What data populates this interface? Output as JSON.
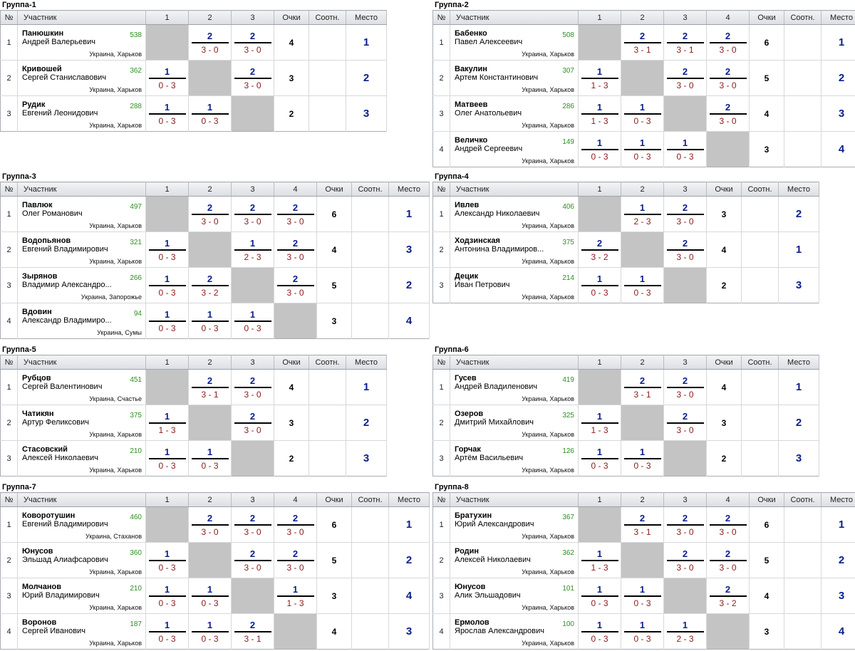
{
  "headers": {
    "num": "№",
    "participant": "Участник",
    "points": "Очки",
    "ratio": "Соотн.",
    "place": "Место"
  },
  "groups": [
    {
      "title": "Группа-1",
      "rows": [
        {
          "num": "1",
          "surname": "Панюшкин",
          "name": "Андрей Валерьевич",
          "rating": "538",
          "city": "Украина, Харьков",
          "scores": [
            null,
            [
              "2",
              "3 - 0"
            ],
            [
              "2",
              "3 - 0"
            ]
          ],
          "points": "4",
          "ratio": "",
          "place": "1"
        },
        {
          "num": "2",
          "surname": "Кривошей",
          "name": "Сергей Станиславович",
          "rating": "362",
          "city": "Украина, Харьков",
          "scores": [
            [
              "1",
              "0 - 3"
            ],
            null,
            [
              "2",
              "3 - 0"
            ]
          ],
          "points": "3",
          "ratio": "",
          "place": "2"
        },
        {
          "num": "3",
          "surname": "Рудик",
          "name": "Евгений Леонидович",
          "rating": "288",
          "city": "Украина, Харьков",
          "scores": [
            [
              "1",
              "0 - 3"
            ],
            [
              "1",
              "0 - 3"
            ],
            null
          ],
          "points": "2",
          "ratio": "",
          "place": "3"
        }
      ]
    },
    {
      "title": "Группа-2",
      "rows": [
        {
          "num": "1",
          "surname": "Бабенко",
          "name": "Павел Алексеевич",
          "rating": "508",
          "city": "Украина, Харьков",
          "scores": [
            null,
            [
              "2",
              "3 - 1"
            ],
            [
              "2",
              "3 - 1"
            ],
            [
              "2",
              "3 - 0"
            ]
          ],
          "points": "6",
          "ratio": "",
          "place": "1"
        },
        {
          "num": "2",
          "surname": "Вакулин",
          "name": "Артем Константинович",
          "rating": "307",
          "city": "Украина, Харьков",
          "scores": [
            [
              "1",
              "1 - 3"
            ],
            null,
            [
              "2",
              "3 - 0"
            ],
            [
              "2",
              "3 - 0"
            ]
          ],
          "points": "5",
          "ratio": "",
          "place": "2"
        },
        {
          "num": "3",
          "surname": "Матвеев",
          "name": "Олег Анатольевич",
          "rating": "286",
          "city": "Украина, Харьков",
          "scores": [
            [
              "1",
              "1 - 3"
            ],
            [
              "1",
              "0 - 3"
            ],
            null,
            [
              "2",
              "3 - 0"
            ]
          ],
          "points": "4",
          "ratio": "",
          "place": "3"
        },
        {
          "num": "4",
          "surname": "Величко",
          "name": "Андрей Сергеевич",
          "rating": "149",
          "city": "Украина, Харьков",
          "scores": [
            [
              "1",
              "0 - 3"
            ],
            [
              "1",
              "0 - 3"
            ],
            [
              "1",
              "0 - 3"
            ],
            null
          ],
          "points": "3",
          "ratio": "",
          "place": "4"
        }
      ]
    },
    {
      "title": "Группа-3",
      "rows": [
        {
          "num": "1",
          "surname": "Павлюк",
          "name": "Олег Романович",
          "rating": "497",
          "city": "Украина, Харьков",
          "scores": [
            null,
            [
              "2",
              "3 - 0"
            ],
            [
              "2",
              "3 - 0"
            ],
            [
              "2",
              "3 - 0"
            ]
          ],
          "points": "6",
          "ratio": "",
          "place": "1"
        },
        {
          "num": "2",
          "surname": "Водопьянов",
          "name": "Евгений Владимирович",
          "rating": "321",
          "city": "Украина, Харьков",
          "scores": [
            [
              "1",
              "0 - 3"
            ],
            null,
            [
              "1",
              "2 - 3"
            ],
            [
              "2",
              "3 - 0"
            ]
          ],
          "points": "4",
          "ratio": "",
          "place": "3"
        },
        {
          "num": "3",
          "surname": "Зырянов",
          "name": "Владимир Александро...",
          "rating": "266",
          "city": "Украина, Запорожье",
          "scores": [
            [
              "1",
              "0 - 3"
            ],
            [
              "2",
              "3 - 2"
            ],
            null,
            [
              "2",
              "3 - 0"
            ]
          ],
          "points": "5",
          "ratio": "",
          "place": "2"
        },
        {
          "num": "4",
          "surname": "Вдовин",
          "name": "Александр Владимиро...",
          "rating": "94",
          "city": "Украина, Сумы",
          "scores": [
            [
              "1",
              "0 - 3"
            ],
            [
              "1",
              "0 - 3"
            ],
            [
              "1",
              "0 - 3"
            ],
            null
          ],
          "points": "3",
          "ratio": "",
          "place": "4"
        }
      ]
    },
    {
      "title": "Группа-4",
      "rows": [
        {
          "num": "1",
          "surname": "Ивлев",
          "name": "Александр Николаевич",
          "rating": "406",
          "city": "Украина, Харьков",
          "scores": [
            null,
            [
              "1",
              "2 - 3"
            ],
            [
              "2",
              "3 - 0"
            ]
          ],
          "points": "3",
          "ratio": "",
          "place": "2"
        },
        {
          "num": "2",
          "surname": "Ходзинская",
          "name": "Антонина Владимиров...",
          "rating": "375",
          "city": "Украина, Харьков",
          "scores": [
            [
              "2",
              "3 - 2"
            ],
            null,
            [
              "2",
              "3 - 0"
            ]
          ],
          "points": "4",
          "ratio": "",
          "place": "1"
        },
        {
          "num": "3",
          "surname": "Децик",
          "name": "Иван Петрович",
          "rating": "214",
          "city": "Украина, Харьков",
          "scores": [
            [
              "1",
              "0 - 3"
            ],
            [
              "1",
              "0 - 3"
            ],
            null
          ],
          "points": "2",
          "ratio": "",
          "place": "3"
        }
      ]
    },
    {
      "title": "Группа-5",
      "rows": [
        {
          "num": "1",
          "surname": "Рубцов",
          "name": "Сергей Валентинович",
          "rating": "451",
          "city": "Украина, Счастье",
          "scores": [
            null,
            [
              "2",
              "3 - 1"
            ],
            [
              "2",
              "3 - 0"
            ]
          ],
          "points": "4",
          "ratio": "",
          "place": "1"
        },
        {
          "num": "2",
          "surname": "Чатикян",
          "name": "Артур Феликсович",
          "rating": "375",
          "city": "Украина, Харьков",
          "scores": [
            [
              "1",
              "1 - 3"
            ],
            null,
            [
              "2",
              "3 - 0"
            ]
          ],
          "points": "3",
          "ratio": "",
          "place": "2"
        },
        {
          "num": "3",
          "surname": "Стасовский",
          "name": "Алексей Николаевич",
          "rating": "210",
          "city": "Украина, Харьков",
          "scores": [
            [
              "1",
              "0 - 3"
            ],
            [
              "1",
              "0 - 3"
            ],
            null
          ],
          "points": "2",
          "ratio": "",
          "place": "3"
        }
      ]
    },
    {
      "title": "Группа-6",
      "rows": [
        {
          "num": "1",
          "surname": "Гусев",
          "name": "Андрей Владиленович",
          "rating": "419",
          "city": "Украина, Харьков",
          "scores": [
            null,
            [
              "2",
              "3 - 1"
            ],
            [
              "2",
              "3 - 0"
            ]
          ],
          "points": "4",
          "ratio": "",
          "place": "1"
        },
        {
          "num": "2",
          "surname": "Озеров",
          "name": "Дмитрий Михайлович",
          "rating": "325",
          "city": "Украина, Харьков",
          "scores": [
            [
              "1",
              "1 - 3"
            ],
            null,
            [
              "2",
              "3 - 0"
            ]
          ],
          "points": "3",
          "ratio": "",
          "place": "2"
        },
        {
          "num": "3",
          "surname": "Горчак",
          "name": "Артём Васильевич",
          "rating": "126",
          "city": "Украина, Харьков",
          "scores": [
            [
              "1",
              "0 - 3"
            ],
            [
              "1",
              "0 - 3"
            ],
            null
          ],
          "points": "2",
          "ratio": "",
          "place": "3"
        }
      ]
    },
    {
      "title": "Группа-7",
      "rows": [
        {
          "num": "1",
          "surname": "Коворотушин",
          "name": "Евгений Владимирович",
          "rating": "460",
          "city": "Украина, Стаханов",
          "scores": [
            null,
            [
              "2",
              "3 - 0"
            ],
            [
              "2",
              "3 - 0"
            ],
            [
              "2",
              "3 - 0"
            ]
          ],
          "points": "6",
          "ratio": "",
          "place": "1"
        },
        {
          "num": "2",
          "surname": "Юнусов",
          "name": "Эльшад Алиафсарович",
          "rating": "360",
          "city": "Украина, Харьков",
          "scores": [
            [
              "1",
              "0 - 3"
            ],
            null,
            [
              "2",
              "3 - 0"
            ],
            [
              "2",
              "3 - 0"
            ]
          ],
          "points": "5",
          "ratio": "",
          "place": "2"
        },
        {
          "num": "3",
          "surname": "Молчанов",
          "name": "Юрий Владимирович",
          "rating": "210",
          "city": "Украина, Харьков",
          "scores": [
            [
              "1",
              "0 - 3"
            ],
            [
              "1",
              "0 - 3"
            ],
            null,
            [
              "1",
              "1 - 3"
            ]
          ],
          "points": "3",
          "ratio": "",
          "place": "4"
        },
        {
          "num": "4",
          "surname": "Воронов",
          "name": "Сергей Иванович",
          "rating": "187",
          "city": "Украина, Харьков",
          "scores": [
            [
              "1",
              "0 - 3"
            ],
            [
              "1",
              "0 - 3"
            ],
            [
              "2",
              "3 - 1"
            ],
            null
          ],
          "points": "4",
          "ratio": "",
          "place": "3"
        }
      ]
    },
    {
      "title": "Группа-8",
      "rows": [
        {
          "num": "1",
          "surname": "Братухин",
          "name": "Юрий Александрович",
          "rating": "367",
          "city": "Украина, Харьков",
          "scores": [
            null,
            [
              "2",
              "3 - 1"
            ],
            [
              "2",
              "3 - 0"
            ],
            [
              "2",
              "3 - 0"
            ]
          ],
          "points": "6",
          "ratio": "",
          "place": "1"
        },
        {
          "num": "2",
          "surname": "Родин",
          "name": "Алексей Николаевич",
          "rating": "362",
          "city": "Украина, Харьков",
          "scores": [
            [
              "1",
              "1 - 3"
            ],
            null,
            [
              "2",
              "3 - 0"
            ],
            [
              "2",
              "3 - 0"
            ]
          ],
          "points": "5",
          "ratio": "",
          "place": "2"
        },
        {
          "num": "3",
          "surname": "Юнусов",
          "name": "Алик Эльшадович",
          "rating": "101",
          "city": "Украина, Харьков",
          "scores": [
            [
              "1",
              "0 - 3"
            ],
            [
              "1",
              "0 - 3"
            ],
            null,
            [
              "2",
              "3 - 2"
            ]
          ],
          "points": "4",
          "ratio": "",
          "place": "3"
        },
        {
          "num": "4",
          "surname": "Ермолов",
          "name": "Ярослав Александрович",
          "rating": "100",
          "city": "Украина, Харьков",
          "scores": [
            [
              "1",
              "0 - 3"
            ],
            [
              "1",
              "0 - 3"
            ],
            [
              "1",
              "2 - 3"
            ],
            null
          ],
          "points": "3",
          "ratio": "",
          "place": "4"
        }
      ]
    }
  ]
}
